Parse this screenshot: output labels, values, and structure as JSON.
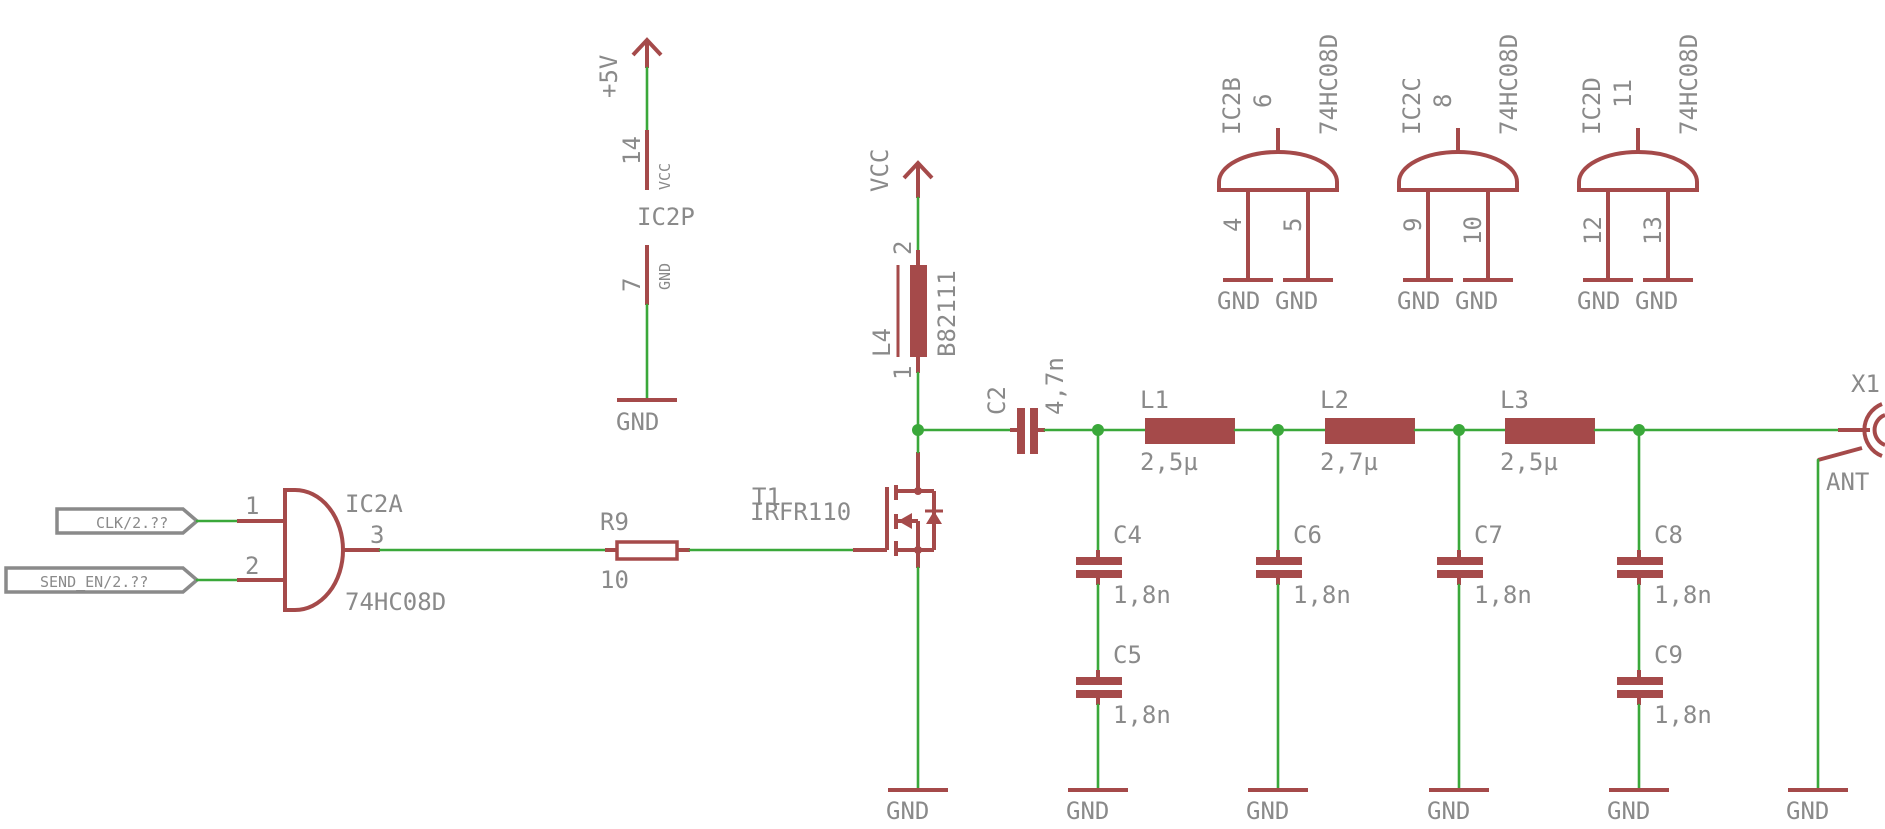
{
  "colors": {
    "wire": "#3aa83a",
    "symbol": "#a54a4a",
    "label": "#8a8a8a",
    "background": "#ffffff"
  },
  "ports": {
    "clk": "CLK/2.??",
    "send_en": "SEND_EN/2.??"
  },
  "ic2a": {
    "name": "IC2A",
    "value": "74HC08D",
    "pin1": "1",
    "pin2": "2",
    "pin3": "3"
  },
  "r9": {
    "name": "R9",
    "value": "10"
  },
  "t1": {
    "name": "T1",
    "value": "IRFR110"
  },
  "l4": {
    "name": "L4",
    "value": "B82111",
    "pin1": "1",
    "pin2": "2"
  },
  "vcc_supply": "VCC",
  "plus5v": "+5V",
  "ic2p": {
    "name": "IC2P",
    "pin14": "14",
    "pin14_name": "VCC",
    "pin7": "7",
    "pin7_name": "GND"
  },
  "c2": {
    "name": "C2",
    "value": "4,7n"
  },
  "l1": {
    "name": "L1",
    "value": "2,5µ"
  },
  "l2": {
    "name": "L2",
    "value": "2,7µ"
  },
  "l3": {
    "name": "L3",
    "value": "2,5µ"
  },
  "c4": {
    "name": "C4",
    "value": "1,8n"
  },
  "c5": {
    "name": "C5",
    "value": "1,8n"
  },
  "c6": {
    "name": "C6",
    "value": "1,8n"
  },
  "c7": {
    "name": "C7",
    "value": "1,8n"
  },
  "c8": {
    "name": "C8",
    "value": "1,8n"
  },
  "c9": {
    "name": "C9",
    "value": "1,8n"
  },
  "x1": {
    "name": "X1",
    "value": "ANT"
  },
  "ic2b": {
    "name": "IC2B",
    "value": "74HC08D",
    "out": "6",
    "in1": "4",
    "in2": "5"
  },
  "ic2c": {
    "name": "IC2C",
    "value": "74HC08D",
    "out": "8",
    "in1": "9",
    "in2": "10"
  },
  "ic2d": {
    "name": "IC2D",
    "value": "74HC08D",
    "out": "11",
    "in1": "12",
    "in2": "13"
  },
  "gnd": "GND"
}
